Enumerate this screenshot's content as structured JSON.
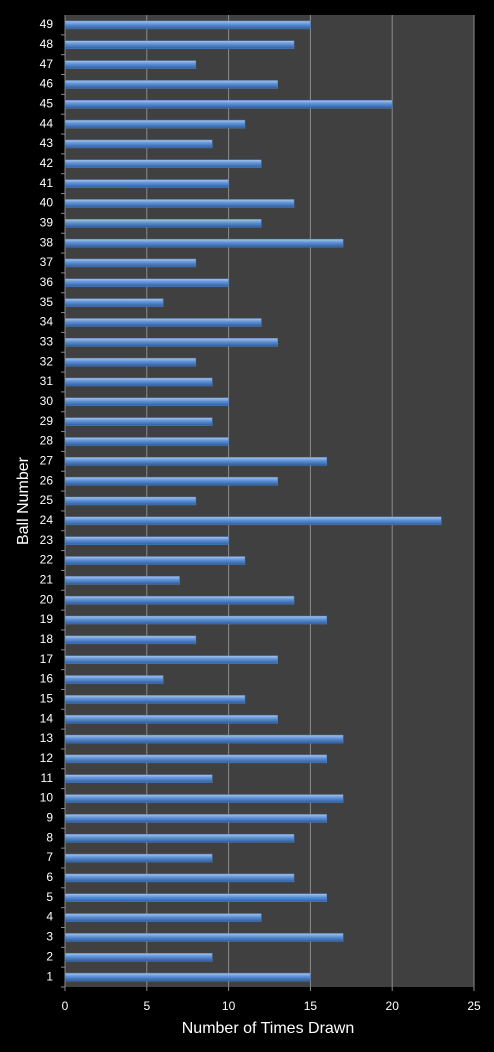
{
  "chart_data": {
    "type": "bar",
    "orientation": "horizontal",
    "x_label": "Number of Times Drawn",
    "y_label": "Ball Number",
    "categories": [
      "1",
      "2",
      "3",
      "4",
      "5",
      "6",
      "7",
      "8",
      "9",
      "10",
      "11",
      "12",
      "13",
      "14",
      "15",
      "16",
      "17",
      "18",
      "19",
      "20",
      "21",
      "22",
      "23",
      "24",
      "25",
      "26",
      "27",
      "28",
      "29",
      "30",
      "31",
      "32",
      "33",
      "34",
      "35",
      "36",
      "37",
      "38",
      "39",
      "40",
      "41",
      "42",
      "43",
      "44",
      "45",
      "46",
      "47",
      "48",
      "49"
    ],
    "values": [
      15,
      9,
      17,
      12,
      16,
      14,
      9,
      14,
      16,
      17,
      9,
      16,
      17,
      13,
      11,
      6,
      13,
      8,
      16,
      14,
      7,
      11,
      10,
      23,
      8,
      13,
      16,
      10,
      9,
      10,
      9,
      8,
      13,
      12,
      6,
      10,
      8,
      17,
      12,
      14,
      10,
      12,
      9,
      11,
      20,
      13,
      8,
      14,
      15
    ],
    "color": "#4f81bd",
    "xlim": [
      0,
      25
    ],
    "xticks": [
      0,
      5,
      10,
      15,
      20,
      25
    ],
    "grid": true
  }
}
